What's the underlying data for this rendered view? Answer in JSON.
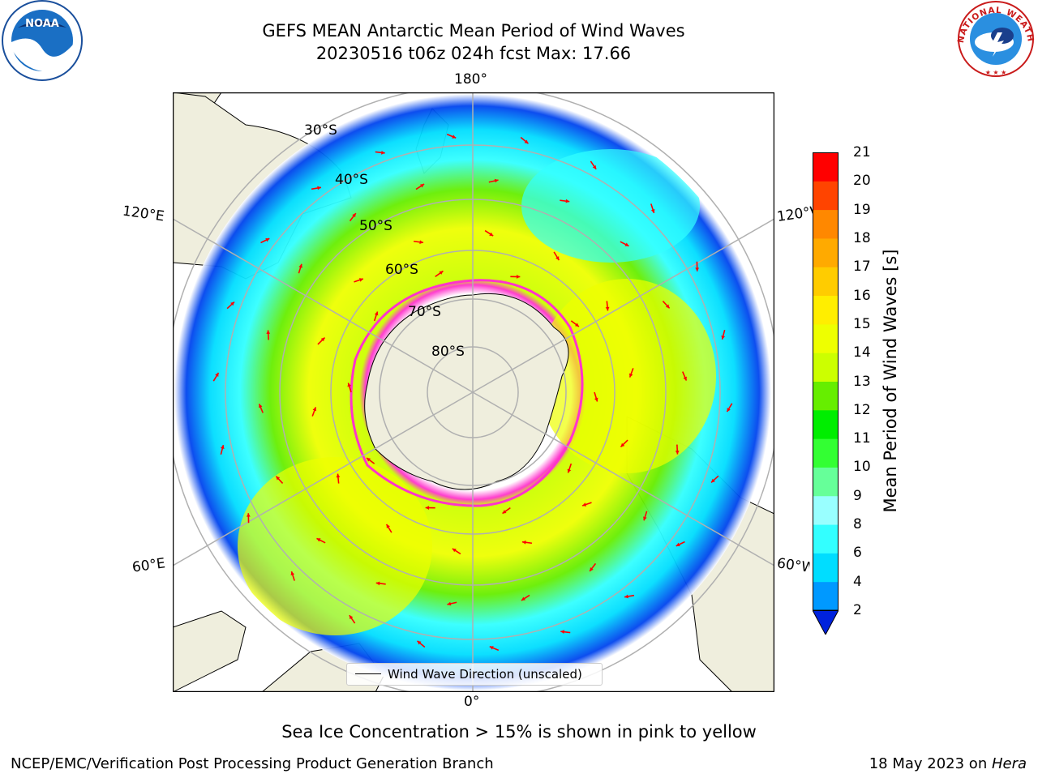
{
  "header": {
    "title_line1": "GEFS MEAN Antarctic Mean Period of Wind Waves",
    "title_line2": "20230516 t06z 024h fcst   Max: 17.66"
  },
  "logos": {
    "noaa": {
      "text": "NOAA"
    },
    "nws": {
      "text": "NATIONAL WEATHER SERVICE"
    }
  },
  "map": {
    "projection": "south-polar-stereographic",
    "longitude_labels": {
      "top": "180°",
      "bottom": "0°",
      "upper_left": "120°E",
      "upper_right": "120°W",
      "lower_left": "60°E",
      "lower_right": "60°W"
    },
    "latitude_labels": [
      "30°S",
      "40°S",
      "50°S",
      "60°S",
      "70°S",
      "80°S"
    ],
    "legend_text": "Wind Wave Direction (unscaled)",
    "colors": {
      "land": "#efeedd",
      "ice_edge": "#ff33cc",
      "arrow": "#ff0000",
      "grid": "#b0b0b0"
    }
  },
  "colorbar": {
    "label": "Mean Period of Wind Waves [s]",
    "ticks": [
      "2",
      "4",
      "6",
      "8",
      "9",
      "10",
      "11",
      "12",
      "13",
      "14",
      "15",
      "16",
      "17",
      "18",
      "19",
      "20",
      "21"
    ],
    "colors": [
      "#0044ee",
      "#0099ff",
      "#00ddff",
      "#33ffff",
      "#99ffff",
      "#66ff99",
      "#33ff33",
      "#00ee00",
      "#66ee00",
      "#ccff00",
      "#eeff00",
      "#ffee00",
      "#ffcc00",
      "#ffaa00",
      "#ff8800",
      "#ff4400",
      "#ff0000"
    ],
    "extend_color": "#0022dd"
  },
  "note": "Sea Ice Concentration > 15% is shown in pink to yellow",
  "footer": {
    "left": "NCEP/EMC/Verification Post Processing Product Generation Branch",
    "right_prefix": "18 May 2023 on ",
    "right_machine": "Hera"
  }
}
